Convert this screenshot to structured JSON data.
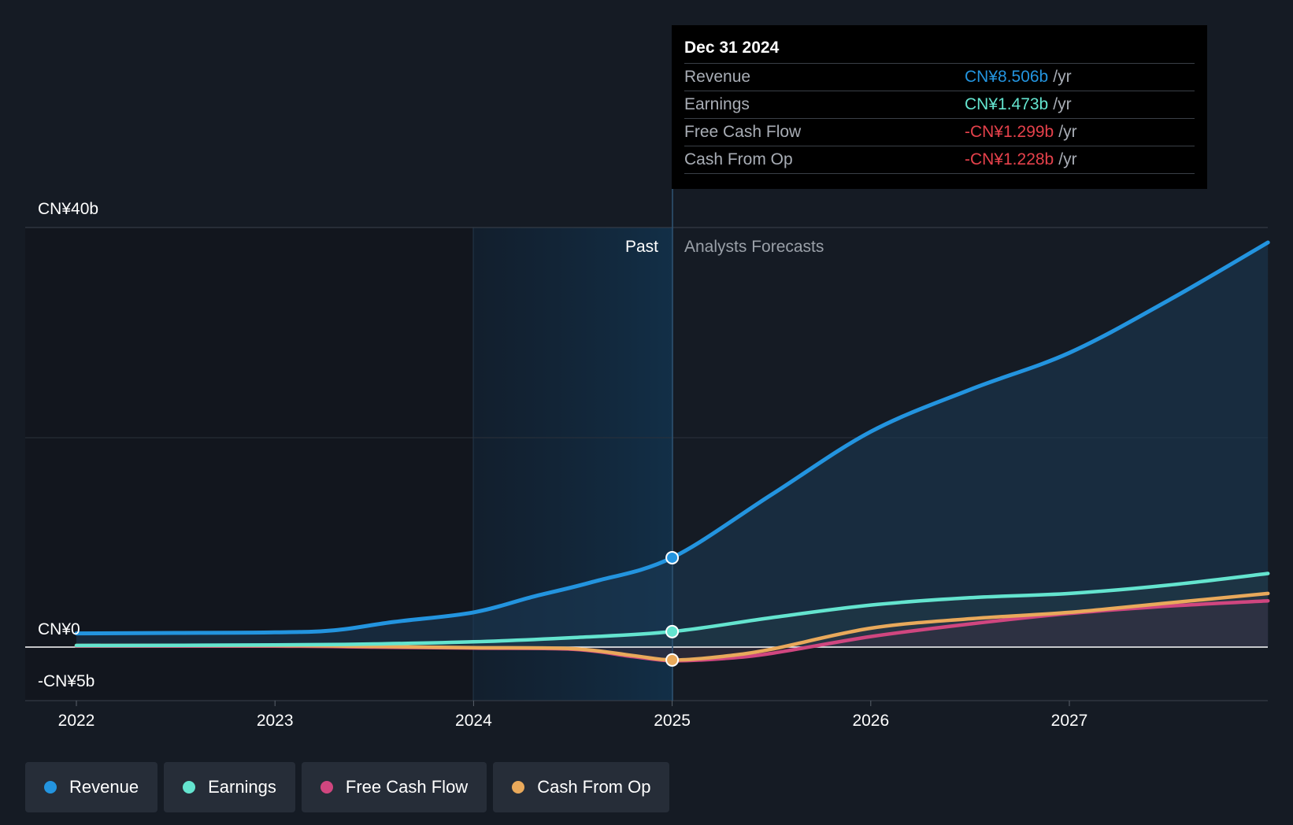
{
  "chart_data": {
    "type": "line",
    "x_ticks": [
      "2022",
      "2023",
      "2024",
      "2025",
      "2026",
      "2027"
    ],
    "y_labels": {
      "top": "CN¥40b",
      "zero": "CN¥0",
      "bottom": "-CN¥5b"
    },
    "ylim": [
      -5,
      40
    ],
    "period_labels": {
      "past": "Past",
      "forecast": "Analysts Forecasts"
    },
    "series": [
      {
        "name": "Revenue",
        "color": "#2394df",
        "x": [
          2022.0,
          2022.5,
          2023.0,
          2023.3,
          2023.6,
          2024.0,
          2024.3,
          2024.6,
          2025.0,
          2025.5,
          2026.0,
          2026.5,
          2027.0,
          2027.5,
          2028.0
        ],
        "values": [
          1.3,
          1.35,
          1.4,
          1.6,
          2.4,
          3.3,
          4.8,
          6.2,
          8.506,
          14.5,
          20.5,
          24.5,
          28.0,
          33.0,
          38.5
        ]
      },
      {
        "name": "Earnings",
        "color": "#64e4cf",
        "x": [
          2022.0,
          2023.0,
          2023.5,
          2024.0,
          2024.5,
          2025.0,
          2025.5,
          2026.0,
          2026.5,
          2027.0,
          2027.5,
          2028.0
        ],
        "values": [
          0.15,
          0.2,
          0.3,
          0.5,
          0.9,
          1.473,
          2.8,
          4.0,
          4.7,
          5.1,
          5.9,
          7.0
        ]
      },
      {
        "name": "Free Cash Flow",
        "color": "#d0467f",
        "x": [
          2022.0,
          2023.0,
          2023.5,
          2024.0,
          2024.5,
          2024.8,
          2025.0,
          2025.25,
          2025.5,
          2026.0,
          2026.5,
          2027.0,
          2027.5,
          2028.0
        ],
        "values": [
          0.1,
          0.1,
          0.0,
          -0.1,
          -0.2,
          -0.9,
          -1.299,
          -1.1,
          -0.6,
          1.0,
          2.2,
          3.2,
          3.9,
          4.4
        ]
      },
      {
        "name": "Cash From Op",
        "color": "#e9a95b",
        "x": [
          2022.0,
          2023.0,
          2023.5,
          2024.0,
          2024.5,
          2024.8,
          2025.0,
          2025.25,
          2025.5,
          2026.0,
          2026.5,
          2027.0,
          2027.5,
          2028.0
        ],
        "values": [
          0.15,
          0.15,
          0.05,
          -0.05,
          -0.15,
          -0.8,
          -1.228,
          -0.9,
          -0.2,
          1.8,
          2.7,
          3.3,
          4.2,
          5.1
        ]
      }
    ],
    "highlight_x": 2025.0,
    "tooltip": {
      "date": "Dec 31 2024",
      "rows": [
        {
          "name": "Revenue",
          "value": "CN¥8.506b",
          "unit": "/yr",
          "color": "#2394df"
        },
        {
          "name": "Earnings",
          "value": "CN¥1.473b",
          "unit": "/yr",
          "color": "#64e4cf"
        },
        {
          "name": "Free Cash Flow",
          "value": "-CN¥1.299b",
          "unit": "/yr",
          "color": "#e5414b"
        },
        {
          "name": "Cash From Op",
          "value": "-CN¥1.228b",
          "unit": "/yr",
          "color": "#e5414b"
        }
      ]
    },
    "legend": [
      {
        "label": "Revenue",
        "color": "#2394df"
      },
      {
        "label": "Earnings",
        "color": "#64e4cf"
      },
      {
        "label": "Free Cash Flow",
        "color": "#d0467f"
      },
      {
        "label": "Cash From Op",
        "color": "#e9a95b"
      }
    ]
  }
}
